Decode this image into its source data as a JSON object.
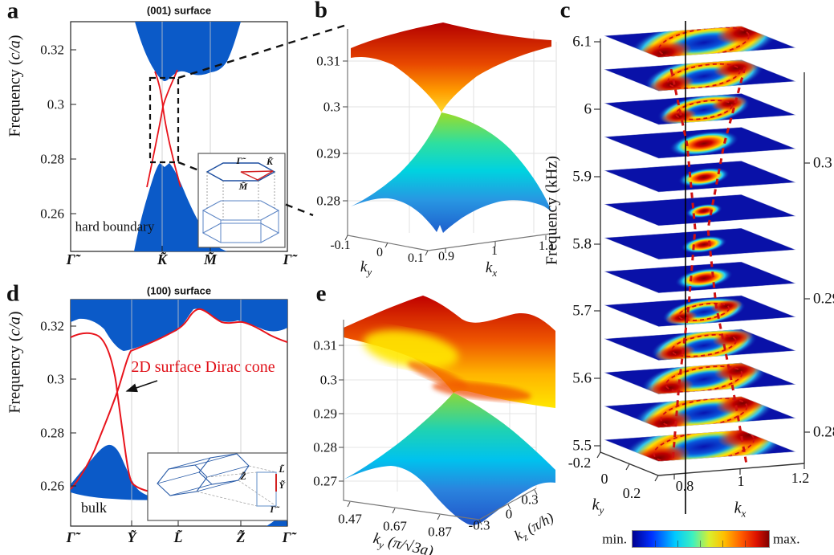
{
  "figure": {
    "description": "Five-panel physics figure: surface Dirac cones of a 3D phononic crystal",
    "colors": {
      "band_blue": "#0b5ac8",
      "surface_state_red": "#e8141c",
      "slice_background_blue": "#0911a8",
      "dashed_black": "#111111",
      "grid_gray": "#c9c9c9",
      "colorbar_jet": [
        "#000090",
        "#0030ff",
        "#00c8ff",
        "#3cf0c0",
        "#d8f030",
        "#ffc000",
        "#ff5a00",
        "#dc1000",
        "#800000"
      ]
    }
  },
  "panels": {
    "a": {
      "letter": "a",
      "title": "(001) surface",
      "ylabel": {
        "prefix": "Frequency (",
        "italic": "c/a",
        "suffix": ")"
      },
      "yticks": [
        "0.32",
        "0.3",
        "0.28",
        "0.26"
      ],
      "xticks": [
        "Γ̃",
        "K̃",
        "M̃",
        "Γ̃"
      ],
      "annotation": "hard boundary",
      "inset": {
        "labels": {
          "gamma": "Γ̃",
          "k": "K̃",
          "m": "M̃"
        }
      }
    },
    "b": {
      "letter": "b",
      "zticks": [
        "0.31",
        "0.3",
        "0.29",
        "0.28"
      ],
      "ky_ticks": [
        "-0.1",
        "0",
        "0.1"
      ],
      "kx_ticks": [
        "0.9",
        "1",
        "1.1"
      ],
      "ky_label": {
        "letter": "k",
        "sub": "y"
      },
      "kx_label": {
        "letter": "k",
        "sub": "x"
      }
    },
    "c": {
      "letter": "c",
      "ylabel": "Frequency (kHz)",
      "freq_ticks": [
        "6.1",
        "6",
        "5.9",
        "5.8",
        "5.7",
        "5.6",
        "5.5"
      ],
      "right_ticks": [
        "0.3",
        "0.29",
        "0.28"
      ],
      "ky_ticks": [
        "-0.2",
        "0",
        "0.2"
      ],
      "kx_ticks": [
        "0.8",
        "1",
        "1.2"
      ],
      "ky_label": {
        "letter": "k",
        "sub": "y"
      },
      "kx_label": {
        "letter": "k",
        "sub": "x"
      },
      "colorbar_min": "min.",
      "colorbar_max": "max."
    },
    "d": {
      "letter": "d",
      "title": "(100) surface",
      "ylabel": {
        "prefix": "Frequency (",
        "italic": "c/a",
        "suffix": ")"
      },
      "yticks": [
        "0.32",
        "0.3",
        "0.28",
        "0.26"
      ],
      "xticks": [
        "Γ̃",
        "Ỹ",
        "L̃",
        "Z̃",
        "Γ̃"
      ],
      "annotation": "2D surface Dirac cone",
      "bulk_label": "bulk",
      "inset": {
        "labels": {
          "z": "Z̃",
          "l": "L̃",
          "y": "Ỹ",
          "gamma": "Γ̃"
        }
      }
    },
    "e": {
      "letter": "e",
      "zticks": [
        "0.31",
        "0.3",
        "0.29",
        "0.28",
        "0.27"
      ],
      "ky_ticks": [
        "0.47",
        "0.67",
        "0.87"
      ],
      "kz_ticks": [
        "-0.3",
        "0",
        "0.3"
      ],
      "ky_label": {
        "letter": "k",
        "sub": "y",
        "rest": " (π/√3a)"
      },
      "kz_label": {
        "letter": "k",
        "sub": "z",
        "rest": " (π/h)"
      }
    }
  },
  "chart_data": [
    {
      "id": "a",
      "type": "line",
      "title": "(001) surface",
      "subtype": "surface band structure with projected bulk bands",
      "ylabel": "Frequency (c/a)",
      "ylim": [
        0.245,
        0.331
      ],
      "yticks": [
        0.26,
        0.28,
        0.3,
        0.32
      ],
      "x_path": [
        "Γ̃",
        "K̃",
        "M̃",
        "Γ̃"
      ],
      "bulk_bands_color": "blue",
      "surface_states_color": "red",
      "dirac_point": {
        "k": "K̃",
        "frequency_ca": 0.2995
      },
      "bulk_gap_at_K_ca": [
        0.279,
        0.31
      ],
      "zoom_box_freq_range_ca": [
        0.281,
        0.31
      ],
      "annotation": "hard boundary",
      "legend_position": "none",
      "grid": "vertical lines at K̃ and M̃"
    },
    {
      "id": "b",
      "type": "surface3d",
      "subtype": "3D Dirac cone dispersion around K̃ of (001) surface",
      "zticks_ca": [
        0.28,
        0.29,
        0.3,
        0.31
      ],
      "kx": {
        "range": [
          0.9,
          1.1
        ],
        "ticks": [
          0.9,
          1,
          1.1
        ]
      },
      "ky": {
        "range": [
          -0.1,
          0.1
        ],
        "ticks": [
          -0.1,
          0,
          0.1
        ]
      },
      "dirac_point": {
        "kx": 1,
        "ky": 0,
        "frequency_ca": 0.2995
      },
      "upper_cone_colors": "red to yellow",
      "lower_cone_colors": "green to blue"
    },
    {
      "id": "c",
      "type": "heatmap",
      "subtype": "stack of measured isofrequency field maps",
      "ylabel": "Frequency (kHz)",
      "freq_axis_kHz": {
        "range": [
          5.5,
          6.1
        ],
        "ticks": [
          5.5,
          5.6,
          5.7,
          5.8,
          5.9,
          6,
          6.1
        ]
      },
      "right_axis_ca": {
        "ticks": [
          0.28,
          0.29,
          0.3
        ]
      },
      "kx": {
        "range": [
          0.8,
          1.2
        ],
        "ticks": [
          0.8,
          1,
          1.2
        ]
      },
      "ky": {
        "range": [
          -0.2,
          0.2
        ],
        "ticks": [
          -0.2,
          0,
          0.2
        ]
      },
      "colorbar": {
        "min_label": "min.",
        "max_label": "max."
      },
      "overlay": "red dashed theoretical Dirac-cone contours; black vertical line through Dirac momentum",
      "slices": [
        {
          "f": 5.5,
          "pattern": "ring",
          "size": 1.0
        },
        {
          "f": 5.55,
          "pattern": "ring",
          "size": 0.86
        },
        {
          "f": 5.6,
          "pattern": "ring",
          "size": 0.76
        },
        {
          "f": 5.65,
          "pattern": "ring",
          "size": 0.64
        },
        {
          "f": 5.7,
          "pattern": "ring",
          "size": 0.5
        },
        {
          "f": 5.75,
          "pattern": "blob",
          "size": 0.3
        },
        {
          "f": 5.8,
          "pattern": "blob",
          "size": 0.22
        },
        {
          "f": 5.85,
          "pattern": "blob",
          "size": 0.16
        },
        {
          "f": 5.9,
          "pattern": "blob",
          "size": 0.26
        },
        {
          "f": 5.95,
          "pattern": "blob",
          "size": 0.38
        },
        {
          "f": 6.0,
          "pattern": "ring",
          "size": 0.56
        },
        {
          "f": 6.05,
          "pattern": "ring",
          "size": 0.72
        },
        {
          "f": 6.1,
          "pattern": "ring",
          "size": 0.9
        }
      ]
    },
    {
      "id": "d",
      "type": "line",
      "title": "(100) surface",
      "subtype": "surface band structure with projected bulk bands",
      "ylabel": "Frequency (c/a)",
      "ylim": [
        0.245,
        0.331
      ],
      "yticks": [
        0.26,
        0.28,
        0.3,
        0.32
      ],
      "x_path": [
        "Γ̃",
        "Ỹ",
        "L̃",
        "Z̃",
        "Γ̃"
      ],
      "dirac_point": {
        "k": "between Γ̃ and Ỹ",
        "frequency_ca": 0.2955
      },
      "annotations": [
        "2D surface Dirac cone",
        "bulk"
      ],
      "grid": "vertical lines at Ỹ, L̃ and Z̃"
    },
    {
      "id": "e",
      "type": "surface3d",
      "subtype": "3D Dirac cone dispersion on (100) surface",
      "zticks_ca": [
        0.27,
        0.28,
        0.29,
        0.3,
        0.31
      ],
      "ky": {
        "label": "ky (π/√3a)",
        "range": [
          0.47,
          0.87
        ],
        "ticks": [
          0.47,
          0.67,
          0.87
        ]
      },
      "kz": {
        "label": "kz (π/h)",
        "range": [
          -0.3,
          0.3
        ],
        "ticks": [
          -0.3,
          0,
          0.3
        ]
      },
      "dirac_point": {
        "frequency_ca": 0.2955
      },
      "upper_sheet_colors": "red with yellow valley",
      "lower_sheet_colors": "cyan to blue"
    }
  ]
}
